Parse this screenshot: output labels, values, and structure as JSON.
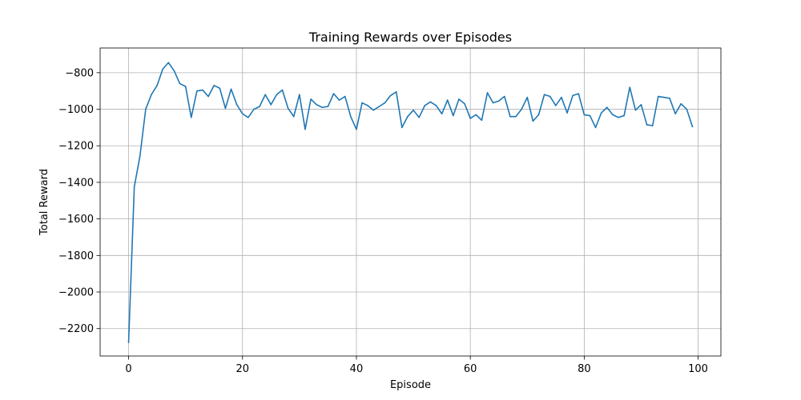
{
  "chart_data": {
    "type": "line",
    "title": "Training Rewards over Episodes",
    "xlabel": "Episode",
    "ylabel": "Total Reward",
    "xlim": [
      -5,
      104
    ],
    "ylim": [
      -2350,
      -665
    ],
    "xticks": [
      0,
      20,
      40,
      60,
      80,
      100
    ],
    "yticks": [
      -2200,
      -2000,
      -1800,
      -1600,
      -1400,
      -1200,
      -1000,
      -800
    ],
    "xtick_labels": [
      "0",
      "20",
      "40",
      "60",
      "80",
      "100"
    ],
    "ytick_labels": [
      "−2200",
      "−2000",
      "−1800",
      "−1600",
      "−1400",
      "−1200",
      "−1000",
      "−800"
    ],
    "grid": true,
    "line_color": "#1f77b4",
    "series": [
      {
        "values": [
          -2275,
          -1425,
          -1255,
          -1000,
          -920,
          -870,
          -780,
          -745,
          -790,
          -860,
          -875,
          -1045,
          -900,
          -895,
          -930,
          -870,
          -885,
          -995,
          -890,
          -975,
          -1025,
          -1045,
          -1000,
          -985,
          -920,
          -975,
          -920,
          -895,
          -995,
          -1040,
          -920,
          -1110,
          -945,
          -975,
          -990,
          -985,
          -915,
          -950,
          -930,
          -1040,
          -1110,
          -965,
          -980,
          -1005,
          -985,
          -965,
          -925,
          -905,
          -1100,
          -1040,
          -1005,
          -1045,
          -980,
          -960,
          -980,
          -1025,
          -950,
          -1035,
          -945,
          -970,
          -1050,
          -1030,
          -1060,
          -910,
          -965,
          -955,
          -930,
          -1040,
          -1040,
          -1000,
          -935,
          -1065,
          -1030,
          -920,
          -930,
          -980,
          -935,
          -1020,
          -925,
          -915,
          -1030,
          -1035,
          -1100,
          -1020,
          -990,
          -1030,
          -1045,
          -1035,
          -880,
          -1005,
          -975,
          -1085,
          -1090,
          -930,
          -935,
          -940,
          -1025,
          -970,
          -1000,
          -1095
        ]
      }
    ]
  }
}
